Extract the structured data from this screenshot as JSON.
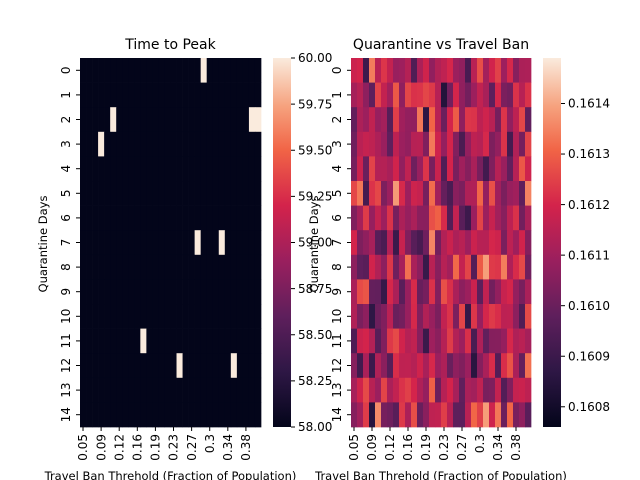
{
  "chart_data": [
    {
      "type": "heatmap",
      "title": "Time to Peak",
      "xlabel": "Travel Ban Threhold (Fraction of Population)",
      "ylabel": "Quarantine Days",
      "x_tick_labels": [
        "0.05",
        "0.09",
        "0.12",
        "0.16",
        "0.19",
        "0.23",
        "0.27",
        "0.3",
        "0.34",
        "0.38"
      ],
      "y_tick_labels": [
        "0",
        "1",
        "2",
        "3",
        "4",
        "5",
        "6",
        "7",
        "8",
        "9",
        "10",
        "11",
        "12",
        "13",
        "14"
      ],
      "n_cols": 30,
      "n_rows": 15,
      "colormap": "rocket",
      "colorbar_ticks": [
        "58.00",
        "58.25",
        "58.50",
        "58.75",
        "59.00",
        "59.25",
        "59.50",
        "59.75",
        "60.00"
      ],
      "vmin": 58.0,
      "vmax": 60.0,
      "baseline_value": 58.0,
      "high_cells": [
        {
          "row": 0,
          "col": 20,
          "value": 60.0
        },
        {
          "row": 2,
          "col": 5,
          "value": 60.0
        },
        {
          "row": 2,
          "col": 28,
          "value": 60.0
        },
        {
          "row": 2,
          "col": 29,
          "value": 60.0
        },
        {
          "row": 3,
          "col": 3,
          "value": 60.0
        },
        {
          "row": 7,
          "col": 19,
          "value": 60.0
        },
        {
          "row": 7,
          "col": 23,
          "value": 60.0
        },
        {
          "row": 11,
          "col": 10,
          "value": 60.0
        },
        {
          "row": 12,
          "col": 16,
          "value": 60.0
        },
        {
          "row": 12,
          "col": 25,
          "value": 60.0
        }
      ]
    },
    {
      "type": "heatmap",
      "title": "Quarantine vs Travel Ban",
      "xlabel": "Travel Ban Threhold (Fraction of Population)",
      "ylabel": "Quarantine Days",
      "x_tick_labels": [
        "0.05",
        "0.09",
        "0.12",
        "0.16",
        "0.19",
        "0.23",
        "0.27",
        "0.3",
        "0.34",
        "0.38"
      ],
      "y_tick_labels": [
        "0",
        "1",
        "2",
        "3",
        "4",
        "5",
        "6",
        "7",
        "8",
        "9",
        "10",
        "11",
        "12",
        "13",
        "14"
      ],
      "n_cols": 30,
      "n_rows": 15,
      "colormap": "rocket",
      "colorbar_ticks": [
        "0.1608",
        "0.1609",
        "0.1610",
        "0.1611",
        "0.1612",
        "0.1613",
        "0.1614"
      ],
      "vmin": 0.16076,
      "vmax": 0.16149,
      "value_summary": "approximately uniform noise between 0.1608 and 0.1615",
      "random_seed": 7
    }
  ]
}
